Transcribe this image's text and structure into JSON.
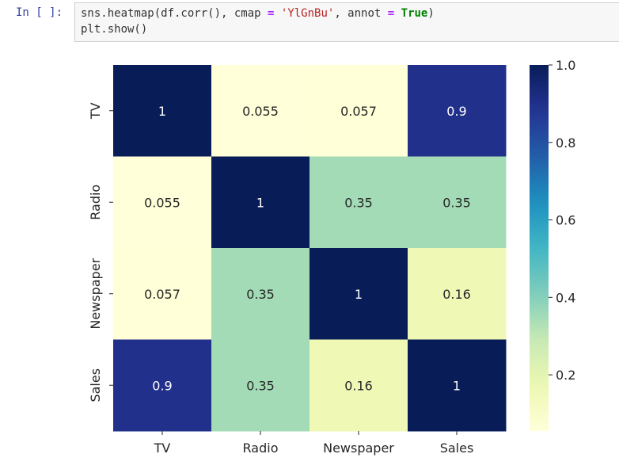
{
  "notebook": {
    "prompt": "In [ ]:",
    "code": {
      "line1": {
        "fn": "sns.heatmap(df.corr(), cmap ",
        "eq1": "=",
        "sp1": " ",
        "str": "'YlGnBu'",
        "mid": ", annot ",
        "eq2": "=",
        "sp2": " ",
        "kw": "True",
        "end": ")"
      },
      "line2": "plt.show()"
    }
  },
  "chart_data": {
    "type": "heatmap",
    "colormap": "YlGnBu",
    "x_labels": [
      "TV",
      "Radio",
      "Newspaper",
      "Sales"
    ],
    "y_labels": [
      "TV",
      "Radio",
      "Newspaper",
      "Sales"
    ],
    "values": [
      [
        1,
        0.055,
        0.057,
        0.9
      ],
      [
        0.055,
        1,
        0.35,
        0.35
      ],
      [
        0.057,
        0.35,
        1,
        0.16
      ],
      [
        0.9,
        0.35,
        0.16,
        1
      ]
    ],
    "annotations": [
      [
        "1",
        "0.055",
        "0.057",
        "0.9"
      ],
      [
        "0.055",
        "1",
        "0.35",
        "0.35"
      ],
      [
        "0.057",
        "0.35",
        "1",
        "0.16"
      ],
      [
        "0.9",
        "0.35",
        "0.16",
        "1"
      ]
    ],
    "colorbar": {
      "range": [
        0.055,
        1.0
      ],
      "ticks": [
        0.2,
        0.4,
        0.6,
        0.8,
        1.0
      ],
      "tick_labels": [
        "0.2",
        "0.4",
        "0.6",
        "0.8",
        "1.0"
      ]
    }
  }
}
